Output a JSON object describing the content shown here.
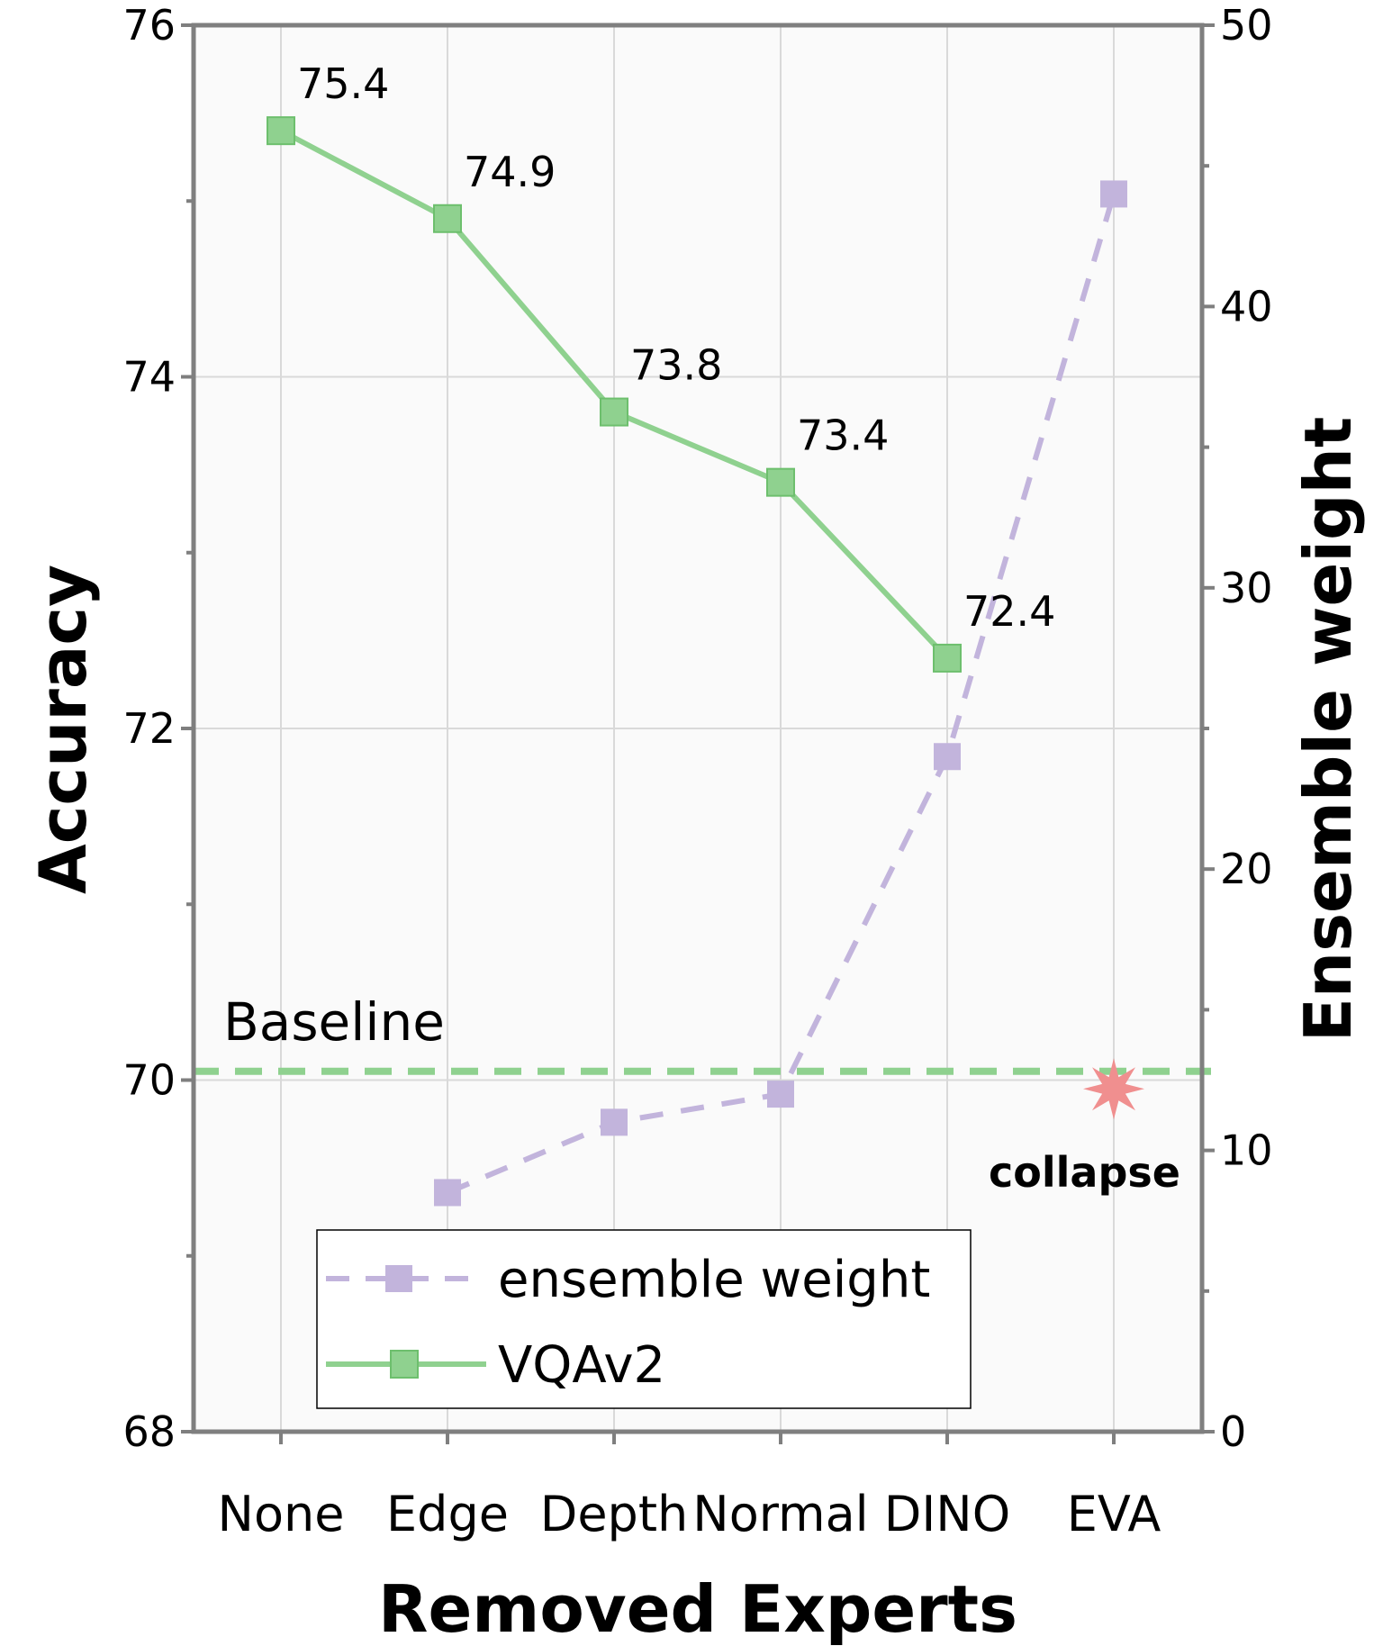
{
  "chart_data": {
    "type": "line",
    "categories": [
      "None",
      "Edge",
      "Depth",
      "Normal",
      "DINO",
      "EVA"
    ],
    "xlabel": "Removed Experts",
    "ylabel_left": "Accuracy",
    "ylabel_right": "Ensemble weight",
    "ylim_left": [
      68,
      76
    ],
    "yticks_left": [
      "68",
      "70",
      "72",
      "74",
      "76"
    ],
    "ylim_right": [
      0,
      50
    ],
    "yticks_right": [
      "0",
      "10",
      "20",
      "30",
      "40",
      "50"
    ],
    "grid": true,
    "series": [
      {
        "name": "VQAv2",
        "axis": "left",
        "style": "solid",
        "marker": "square",
        "color": "#8fd18f",
        "values": [
          75.4,
          74.9,
          73.8,
          73.4,
          72.4,
          null
        ],
        "data_labels": [
          "75.4",
          "74.9",
          "73.8",
          "73.4",
          "72.4",
          ""
        ]
      },
      {
        "name": "ensemble weight",
        "axis": "right",
        "style": "dashed",
        "marker": "square",
        "color": "#c2b4dc",
        "values": [
          null,
          8.5,
          11,
          12,
          24,
          44
        ]
      }
    ],
    "baseline": {
      "label": "Baseline",
      "value": 70.05,
      "axis": "left",
      "color": "#8fd18f"
    },
    "collapse_marker": {
      "label": "collapse",
      "category": "EVA",
      "value": 69.95,
      "axis": "left",
      "color": "#f08f8f"
    },
    "legend": {
      "position": "bottom-center",
      "entries": [
        "ensemble weight",
        "VQAv2"
      ]
    }
  }
}
